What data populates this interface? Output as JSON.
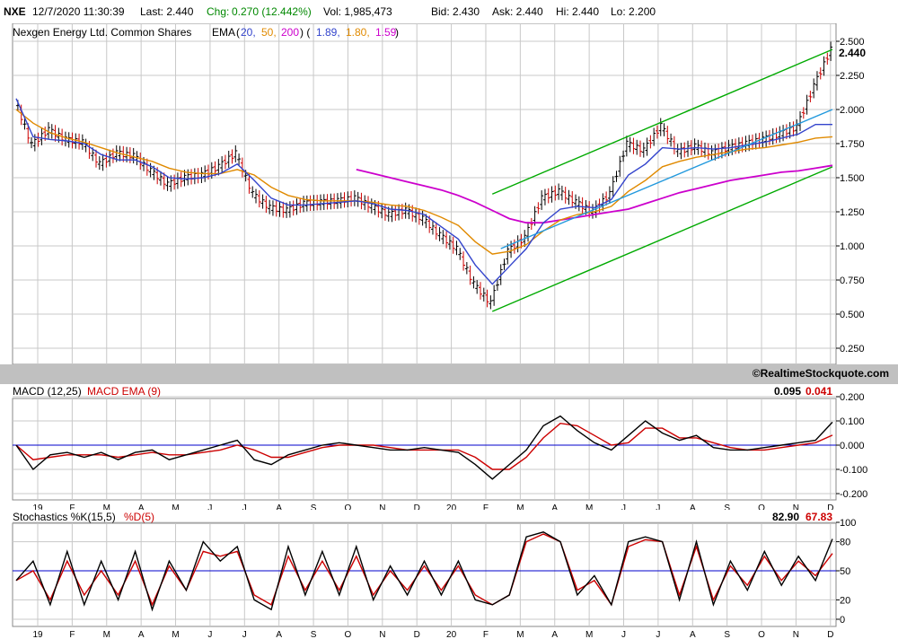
{
  "quote": {
    "symbol": "NXE",
    "datetime": "12/7/2020 11:30:39",
    "last": "Last: 2.440",
    "chg_label": "Chg:",
    "chg_value": "0.270 (12.442%)",
    "vol": "Vol: 1,985,473",
    "bid": "Bid: 2.430",
    "ask": "Ask: 2.440",
    "hi": "Hi: 2.440",
    "lo": "Lo: 2.200"
  },
  "colors": {
    "price_up": "#000000",
    "price_down": "#cc0000",
    "ema20": "#3344cc",
    "ema50": "#e08a00",
    "ema200": "#cc00cc",
    "channel": "#00aa00",
    "trendline": "#2299dd",
    "zero_line": "#0000cc",
    "macd_signal": "#cc0000",
    "stoch_d": "#cc0000",
    "grid": "#c8c8c8",
    "separator": "#c0c0c0"
  },
  "chart_data": [
    {
      "type": "line",
      "name": "price",
      "title": "Nexgen Energy Ltd. Common Shares",
      "legend": {
        "label": "EMA",
        "open": "(",
        "periods": [
          "20,",
          "50,",
          "200"
        ],
        "close_open": ")  (",
        "values": [
          "1.89,",
          "1.80,",
          "1.59"
        ],
        "close": ")"
      },
      "last_value_label": "2.440",
      "x_ticks": [
        "19",
        "F",
        "M",
        "A",
        "M",
        "J",
        "J",
        "A",
        "S",
        "O",
        "N",
        "D",
        "20",
        "F",
        "M",
        "A",
        "M",
        "J",
        "J",
        "A",
        "S",
        "O",
        "N",
        "D"
      ],
      "y_ticks": [
        "2.500",
        "2.250",
        "2.000",
        "1.750",
        "1.500",
        "1.250",
        "1.000",
        "0.750",
        "0.500",
        "0.250"
      ],
      "ylim": [
        0.25,
        2.5
      ],
      "grid": true,
      "credit": "©RealtimeStockquote.com",
      "x": [
        0,
        10,
        20,
        30,
        40,
        50,
        60,
        70,
        80,
        90,
        100,
        110,
        120,
        130,
        140,
        150,
        160,
        170,
        180,
        190,
        200,
        210,
        220,
        230,
        240,
        250,
        260,
        270,
        280,
        290,
        300,
        310,
        320,
        330,
        340,
        350,
        360,
        370,
        380,
        390,
        400,
        410,
        420,
        430,
        440,
        450,
        460,
        470,
        480
      ],
      "close": [
        2.08,
        1.74,
        1.85,
        1.78,
        1.76,
        1.6,
        1.68,
        1.66,
        1.55,
        1.45,
        1.5,
        1.52,
        1.58,
        1.68,
        1.38,
        1.28,
        1.26,
        1.31,
        1.32,
        1.33,
        1.35,
        1.29,
        1.23,
        1.26,
        1.2,
        1.08,
        0.98,
        0.72,
        0.58,
        0.96,
        1.06,
        1.35,
        1.4,
        1.32,
        1.25,
        1.38,
        1.75,
        1.7,
        1.88,
        1.69,
        1.73,
        1.68,
        1.72,
        1.75,
        1.78,
        1.82,
        1.87,
        2.17,
        2.44
      ],
      "ema20": [
        2.08,
        1.8,
        1.78,
        1.77,
        1.75,
        1.67,
        1.63,
        1.63,
        1.58,
        1.5,
        1.49,
        1.5,
        1.53,
        1.6,
        1.48,
        1.35,
        1.3,
        1.3,
        1.31,
        1.32,
        1.33,
        1.31,
        1.27,
        1.26,
        1.23,
        1.14,
        1.05,
        0.86,
        0.72,
        0.85,
        0.98,
        1.17,
        1.27,
        1.29,
        1.28,
        1.34,
        1.52,
        1.6,
        1.72,
        1.71,
        1.72,
        1.71,
        1.72,
        1.74,
        1.76,
        1.79,
        1.82,
        1.89,
        1.89
      ],
      "ema50": [
        2.0,
        1.9,
        1.83,
        1.79,
        1.76,
        1.72,
        1.68,
        1.65,
        1.62,
        1.57,
        1.54,
        1.53,
        1.53,
        1.56,
        1.52,
        1.43,
        1.37,
        1.34,
        1.33,
        1.33,
        1.33,
        1.32,
        1.3,
        1.29,
        1.26,
        1.21,
        1.15,
        1.03,
        0.94,
        0.96,
        1.01,
        1.11,
        1.19,
        1.23,
        1.25,
        1.29,
        1.4,
        1.48,
        1.58,
        1.62,
        1.65,
        1.67,
        1.69,
        1.71,
        1.72,
        1.74,
        1.76,
        1.79,
        1.8
      ],
      "ema200": [
        null,
        null,
        null,
        null,
        null,
        null,
        null,
        null,
        null,
        null,
        null,
        null,
        null,
        null,
        null,
        null,
        null,
        null,
        null,
        null,
        1.56,
        1.53,
        1.5,
        1.47,
        1.44,
        1.41,
        1.37,
        1.32,
        1.26,
        1.2,
        1.17,
        1.17,
        1.19,
        1.21,
        1.23,
        1.25,
        1.27,
        1.31,
        1.35,
        1.39,
        1.42,
        1.45,
        1.48,
        1.5,
        1.52,
        1.54,
        1.55,
        1.57,
        1.59
      ],
      "annotations": {
        "channel_upper": {
          "from": [
            280,
            1.38
          ],
          "to": [
            480,
            2.44
          ]
        },
        "channel_lower": {
          "from": [
            280,
            0.52
          ],
          "to": [
            480,
            1.58
          ]
        },
        "trendline": {
          "from": [
            285,
            0.98
          ],
          "to": [
            480,
            2.0
          ]
        }
      }
    },
    {
      "type": "line",
      "name": "macd",
      "title_main": "MACD (12,25)",
      "title_signal": "MACD EMA (9)",
      "value_main": "0.095",
      "value_signal": "0.041",
      "x_ticks": [
        "19",
        "F",
        "M",
        "A",
        "M",
        "J",
        "J",
        "A",
        "S",
        "O",
        "N",
        "D",
        "20",
        "F",
        "M",
        "A",
        "M",
        "J",
        "J",
        "A",
        "S",
        "O",
        "N",
        "D"
      ],
      "y_ticks": [
        "0.200",
        "0.100",
        "0.000",
        "-0.100",
        "-0.200"
      ],
      "ylim": [
        -0.2,
        0.2
      ],
      "x": [
        0,
        10,
        20,
        30,
        40,
        50,
        60,
        70,
        80,
        90,
        100,
        110,
        120,
        130,
        140,
        150,
        160,
        170,
        180,
        190,
        200,
        210,
        220,
        230,
        240,
        250,
        260,
        270,
        280,
        290,
        300,
        310,
        320,
        330,
        340,
        350,
        360,
        370,
        380,
        390,
        400,
        410,
        420,
        430,
        440,
        450,
        460,
        470,
        480
      ],
      "macd": [
        0.0,
        -0.1,
        -0.04,
        -0.03,
        -0.05,
        -0.03,
        -0.06,
        -0.03,
        -0.02,
        -0.06,
        -0.04,
        -0.02,
        0.0,
        0.02,
        -0.06,
        -0.08,
        -0.04,
        -0.02,
        0.0,
        0.01,
        0.0,
        -0.01,
        -0.02,
        -0.02,
        -0.01,
        -0.02,
        -0.03,
        -0.08,
        -0.14,
        -0.08,
        -0.02,
        0.08,
        0.12,
        0.06,
        0.01,
        -0.02,
        0.04,
        0.1,
        0.05,
        0.02,
        0.04,
        -0.01,
        -0.02,
        -0.02,
        -0.01,
        0.0,
        0.01,
        0.02,
        0.095
      ],
      "signal": [
        0.0,
        -0.06,
        -0.05,
        -0.04,
        -0.04,
        -0.04,
        -0.05,
        -0.04,
        -0.03,
        -0.04,
        -0.04,
        -0.03,
        -0.02,
        0.0,
        -0.02,
        -0.05,
        -0.05,
        -0.03,
        -0.01,
        0.0,
        0.0,
        0.0,
        -0.01,
        -0.02,
        -0.02,
        -0.02,
        -0.02,
        -0.05,
        -0.1,
        -0.1,
        -0.05,
        0.03,
        0.09,
        0.08,
        0.04,
        0.0,
        0.01,
        0.07,
        0.07,
        0.03,
        0.03,
        0.01,
        -0.01,
        -0.02,
        -0.02,
        -0.01,
        0.0,
        0.01,
        0.041
      ]
    },
    {
      "type": "line",
      "name": "stochastics",
      "title_main": "Stochastics %K(15,5)",
      "title_signal": "%D(5)",
      "value_main": "82.90",
      "value_signal": "67.83",
      "x_ticks": [
        "19",
        "F",
        "M",
        "A",
        "M",
        "J",
        "J",
        "A",
        "S",
        "O",
        "N",
        "D",
        "20",
        "F",
        "M",
        "A",
        "M",
        "J",
        "J",
        "A",
        "S",
        "O",
        "N",
        "D"
      ],
      "y_ticks": [
        "100",
        "80",
        "50",
        "20",
        "0"
      ],
      "ylim": [
        0,
        100
      ],
      "x": [
        0,
        10,
        20,
        30,
        40,
        50,
        60,
        70,
        80,
        90,
        100,
        110,
        120,
        130,
        140,
        150,
        160,
        170,
        180,
        190,
        200,
        210,
        220,
        230,
        240,
        250,
        260,
        270,
        280,
        290,
        300,
        310,
        320,
        330,
        340,
        350,
        360,
        370,
        380,
        390,
        400,
        410,
        420,
        430,
        440,
        450,
        460,
        470,
        480
      ],
      "k": [
        40,
        60,
        15,
        70,
        15,
        60,
        20,
        70,
        10,
        60,
        30,
        80,
        60,
        75,
        20,
        10,
        75,
        25,
        70,
        25,
        75,
        20,
        55,
        25,
        60,
        25,
        60,
        20,
        15,
        25,
        85,
        90,
        80,
        25,
        45,
        15,
        80,
        85,
        80,
        20,
        80,
        15,
        60,
        30,
        70,
        35,
        65,
        40,
        82.9
      ],
      "d": [
        40,
        50,
        20,
        60,
        25,
        50,
        25,
        60,
        15,
        55,
        30,
        70,
        65,
        70,
        25,
        15,
        65,
        30,
        60,
        30,
        65,
        25,
        50,
        30,
        55,
        30,
        55,
        25,
        15,
        25,
        80,
        88,
        80,
        30,
        40,
        15,
        75,
        82,
        80,
        25,
        75,
        20,
        55,
        35,
        65,
        40,
        60,
        45,
        67.83
      ]
    }
  ]
}
